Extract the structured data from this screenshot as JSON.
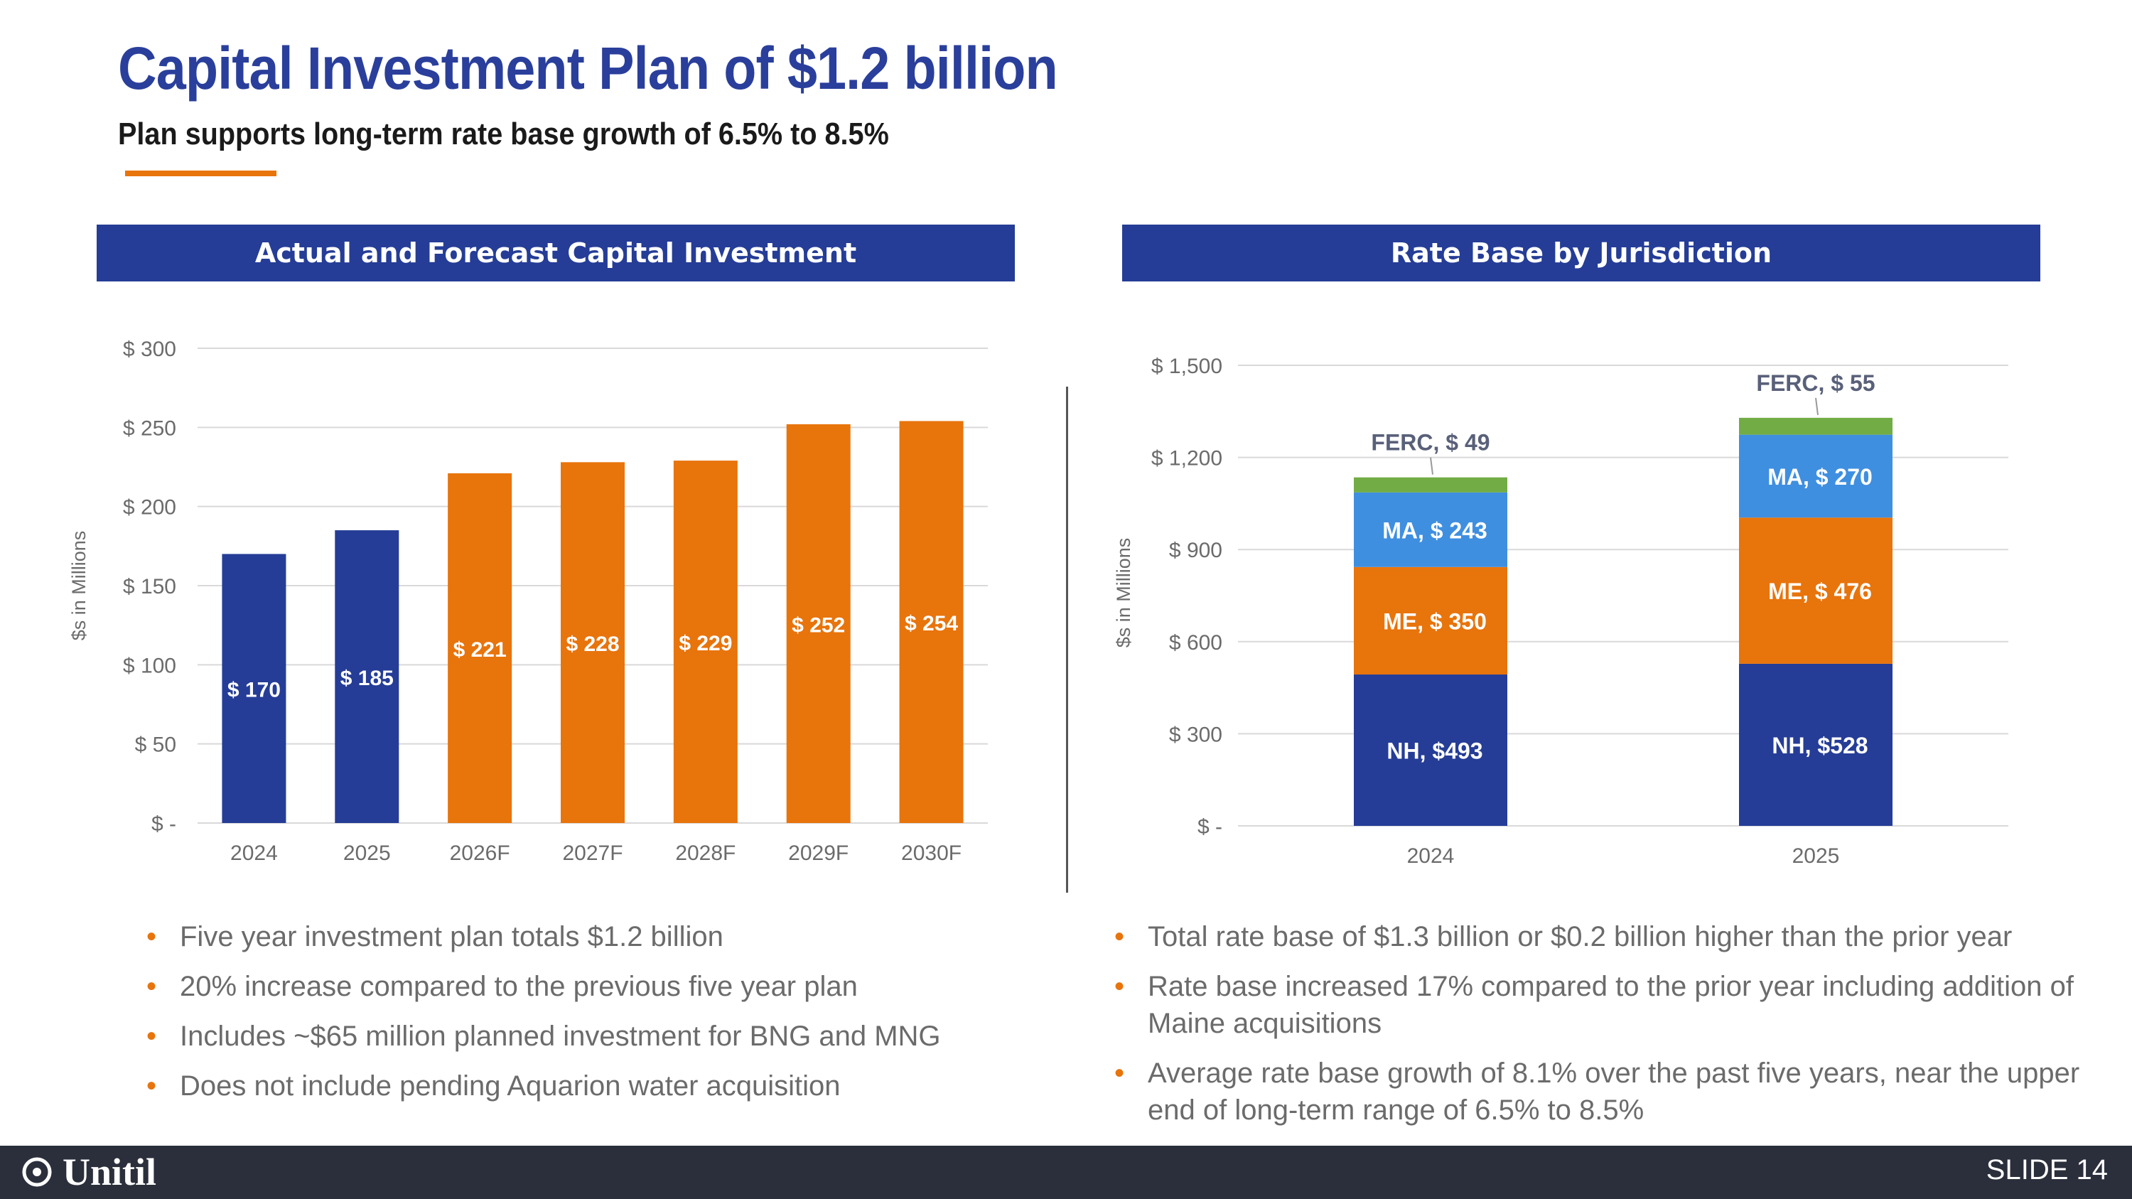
{
  "header": {
    "title": "Capital Investment Plan of $1.2 billion",
    "subtitle": "Plan supports long-term rate base growth of 6.5% to 8.5%"
  },
  "left_panel": {
    "header": "Actual and Forecast Capital Investment",
    "bullets": [
      "Five year investment plan totals $1.2 billion",
      "20% increase compared to the previous five year plan",
      "Includes ~$65 million planned investment for BNG and MNG",
      "Does not include pending Aquarion water acquisition"
    ]
  },
  "right_panel": {
    "header": "Rate Base by Jurisdiction",
    "bullets": [
      "Total rate base of $1.3 billion or $0.2 billion higher than the prior year",
      "Rate base increased 17% compared to the prior year including addition of Maine acquisitions",
      "Average rate base growth of 8.1% over the past five years, near the upper end of long-term range of 6.5% to 8.5%"
    ]
  },
  "footer": {
    "logo": "Unitil",
    "slide": "SLIDE 14"
  },
  "colors": {
    "navy": "#253d96",
    "orange": "#e8740c",
    "blue": "#3f8fe0",
    "green": "#72ac45",
    "axis_text": "#6b6b6b"
  },
  "chart_data": [
    {
      "type": "bar",
      "title": "Actual and Forecast Capital Investment",
      "ylabel": "$s in Millions",
      "categories": [
        "2024",
        "2025",
        "2026F",
        "2027F",
        "2028F",
        "2029F",
        "2030F"
      ],
      "values": [
        170,
        185,
        221,
        228,
        229,
        252,
        254
      ],
      "data_labels": [
        "$ 170",
        "$ 185",
        "$ 221",
        "$ 228",
        "$ 229",
        "$ 252",
        "$ 254"
      ],
      "bar_colors": [
        "#253d96",
        "#253d96",
        "#e8740c",
        "#e8740c",
        "#e8740c",
        "#e8740c",
        "#e8740c"
      ],
      "ylim": [
        0,
        300
      ],
      "yticks": [
        0,
        50,
        100,
        150,
        200,
        250,
        300
      ],
      "ytick_labels": [
        "$ -",
        "$ 50",
        "$ 100",
        "$ 150",
        "$ 200",
        "$ 250",
        "$ 300"
      ],
      "grid": true,
      "legend": "none"
    },
    {
      "type": "bar",
      "stacked": true,
      "title": "Rate Base by Jurisdiction",
      "ylabel": "$s in Millions",
      "categories": [
        "2024",
        "2025"
      ],
      "series": [
        {
          "name": "NH",
          "values": [
            493,
            528
          ],
          "color": "#253d96",
          "labels": [
            "NH, $493",
            "NH, $528"
          ]
        },
        {
          "name": "ME",
          "values": [
            350,
            476
          ],
          "color": "#e8740c",
          "labels": [
            "ME, $ 350",
            "ME, $ 476"
          ]
        },
        {
          "name": "MA",
          "values": [
            243,
            270
          ],
          "color": "#3f8fe0",
          "labels": [
            "MA, $ 243",
            "MA, $ 270"
          ]
        },
        {
          "name": "FERC",
          "values": [
            49,
            55
          ],
          "color": "#72ac45",
          "labels": [
            "FERC, $ 49",
            "FERC, $ 55"
          ]
        }
      ],
      "ylim": [
        0,
        1500
      ],
      "yticks": [
        0,
        300,
        600,
        900,
        1200,
        1500
      ],
      "ytick_labels": [
        "$ -",
        "$ 300",
        "$ 600",
        "$ 900",
        "$ 1,200",
        "$ 1,500"
      ],
      "grid": true,
      "legend": "none"
    }
  ]
}
